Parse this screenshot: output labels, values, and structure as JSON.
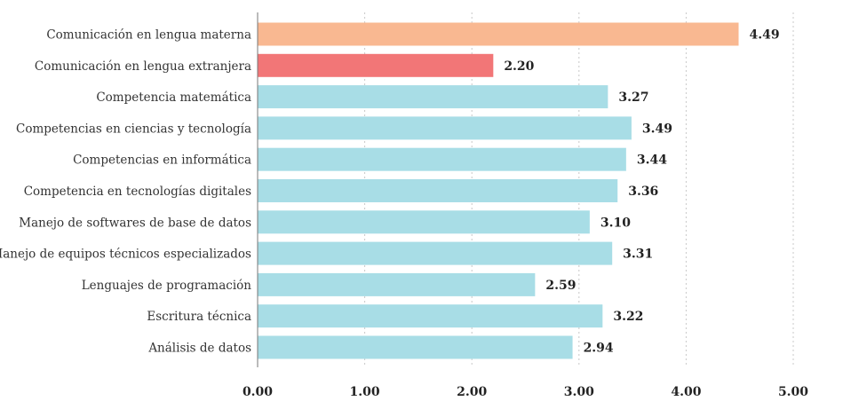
{
  "chart_data": {
    "type": "bar",
    "orientation": "horizontal",
    "title": "",
    "xlabel": "",
    "ylabel": "",
    "xlim": [
      0,
      5
    ],
    "xticks": [
      "0.00",
      "1.00",
      "2.00",
      "3.00",
      "4.00",
      "5.00"
    ],
    "grid": "vertical-dashed",
    "categories": [
      "Comunicación en lengua materna",
      "Comunicación en lengua extranjera",
      "Competencia matemática",
      "Competencias en ciencias y tecnología",
      "Competencias en informática",
      "Competencia en tecnologías digitales",
      "Manejo de softwares de base de datos",
      "Manejo de equipos técnicos especializados",
      "Lenguajes de programación",
      "Escritura técnica",
      "Análisis de datos"
    ],
    "values": [
      4.49,
      2.2,
      3.27,
      3.49,
      3.44,
      3.36,
      3.1,
      3.31,
      2.59,
      3.22,
      2.94
    ],
    "value_labels": [
      "4.49",
      "2.20",
      "3.27",
      "3.49",
      "3.44",
      "3.36",
      "3.10",
      "3.31",
      "2.59",
      "3.22",
      "2.94"
    ],
    "colors": [
      "#f9b891",
      "#f27677",
      "#a8dde6",
      "#a8dde6",
      "#a8dde6",
      "#a8dde6",
      "#a8dde6",
      "#a8dde6",
      "#a8dde6",
      "#a8dde6",
      "#a8dde6"
    ]
  }
}
